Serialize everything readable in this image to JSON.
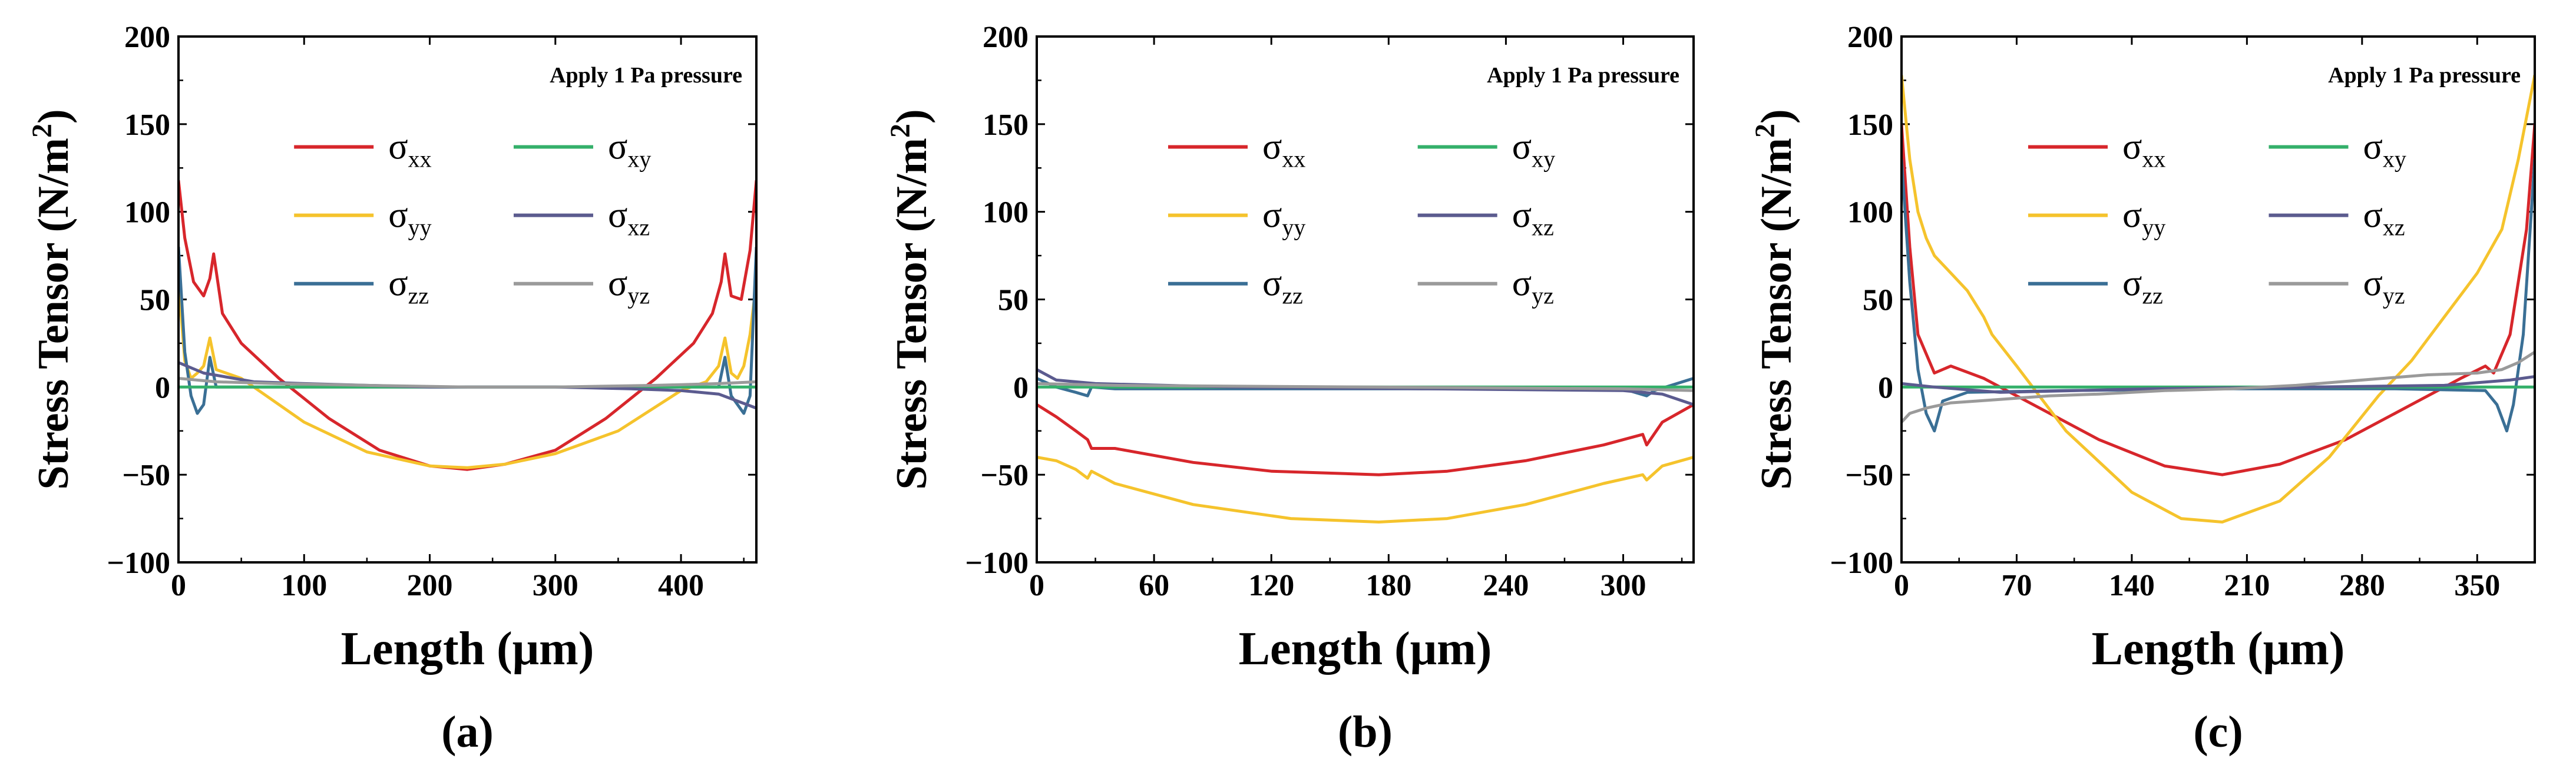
{
  "colors": {
    "sxx": "#d7262b",
    "syy": "#f5c32c",
    "szz": "#3a6f95",
    "sxy": "#34b06a",
    "sxz": "#5b5b8f",
    "syz": "#9a9a9a",
    "axis": "#000000"
  },
  "chart_data": [
    {
      "type": "line",
      "panel_label": "(a)",
      "annotation": "Apply 1 Pa pressure",
      "xlabel": "Length (μm)",
      "ylabel": {
        "main": "Stress Tensor (N/m",
        "sup": "2",
        "close": ")"
      },
      "xlim": [
        0,
        460
      ],
      "ylim": [
        -100,
        200
      ],
      "xticks": [
        0,
        100,
        200,
        300,
        400
      ],
      "xtick_labels": [
        "0",
        "100",
        "200",
        "300",
        "400"
      ],
      "yticks": [
        -100,
        -50,
        0,
        50,
        100,
        150,
        200
      ],
      "ytick_labels": [
        "−100",
        "−50",
        "0",
        "50",
        "100",
        "150",
        "200"
      ],
      "legend": [
        {
          "key": "sxx",
          "base": "σ",
          "sub": "xx"
        },
        {
          "key": "sxy",
          "base": "σ",
          "sub": "xy"
        },
        {
          "key": "syy",
          "base": "σ",
          "sub": "yy"
        },
        {
          "key": "sxz",
          "base": "σ",
          "sub": "xz"
        },
        {
          "key": "szz",
          "base": "σ",
          "sub": "zz"
        },
        {
          "key": "syz",
          "base": "σ",
          "sub": "yz"
        }
      ],
      "series": [
        {
          "key": "sxx",
          "x": [
            0,
            5,
            12,
            20,
            25,
            28,
            35,
            50,
            80,
            120,
            160,
            200,
            230,
            260,
            300,
            340,
            380,
            410,
            425,
            432,
            435,
            440,
            448,
            455,
            460
          ],
          "y": [
            118,
            85,
            60,
            52,
            62,
            76,
            42,
            25,
            5,
            -18,
            -36,
            -45,
            -47,
            -44,
            -36,
            -18,
            5,
            25,
            42,
            60,
            76,
            52,
            50,
            78,
            118
          ]
        },
        {
          "key": "syy",
          "x": [
            0,
            5,
            10,
            15,
            20,
            25,
            30,
            50,
            100,
            150,
            200,
            230,
            260,
            300,
            350,
            400,
            420,
            430,
            435,
            440,
            445,
            450,
            455,
            460
          ],
          "y": [
            60,
            15,
            5,
            8,
            12,
            28,
            10,
            5,
            -20,
            -37,
            -45,
            -46,
            -44,
            -38,
            -25,
            -2,
            3,
            12,
            28,
            8,
            5,
            12,
            30,
            60
          ]
        },
        {
          "key": "szz",
          "x": [
            0,
            5,
            10,
            15,
            20,
            25,
            30,
            60,
            200,
            400,
            430,
            435,
            440,
            445,
            450,
            455,
            460
          ],
          "y": [
            80,
            20,
            -5,
            -15,
            -10,
            17,
            0,
            0,
            0,
            0,
            0,
            17,
            -5,
            -10,
            -15,
            -5,
            80
          ]
        },
        {
          "key": "sxy",
          "x": [
            0,
            460
          ],
          "y": [
            0,
            0
          ]
        },
        {
          "key": "sxz",
          "x": [
            0,
            20,
            60,
            100,
            200,
            300,
            360,
            400,
            430,
            445,
            460
          ],
          "y": [
            14,
            8,
            3,
            2,
            0,
            0,
            -1,
            -2,
            -4,
            -8,
            -12
          ]
        },
        {
          "key": "syz",
          "x": [
            0,
            30,
            80,
            150,
            230,
            300,
            380,
            430,
            460
          ],
          "y": [
            5,
            3,
            2,
            1,
            0,
            0,
            1,
            2,
            3
          ]
        }
      ]
    },
    {
      "type": "line",
      "panel_label": "(b)",
      "annotation": "Apply 1 Pa pressure",
      "xlabel": "Length (μm)",
      "ylabel": {
        "main": "Stress Tensor (N/m",
        "sup": "2",
        "close": ")"
      },
      "xlim": [
        0,
        336
      ],
      "ylim": [
        -100,
        200
      ],
      "xticks": [
        0,
        60,
        120,
        180,
        240,
        300
      ],
      "xtick_labels": [
        "0",
        "60",
        "120",
        "180",
        "240",
        "300"
      ],
      "yticks": [
        -100,
        -50,
        0,
        50,
        100,
        150,
        200
      ],
      "ytick_labels": [
        "−100",
        "−50",
        "0",
        "50",
        "100",
        "150",
        "200"
      ],
      "legend": [
        {
          "key": "sxx",
          "base": "σ",
          "sub": "xx"
        },
        {
          "key": "sxy",
          "base": "σ",
          "sub": "xy"
        },
        {
          "key": "syy",
          "base": "σ",
          "sub": "yy"
        },
        {
          "key": "sxz",
          "base": "σ",
          "sub": "xz"
        },
        {
          "key": "szz",
          "base": "σ",
          "sub": "zz"
        },
        {
          "key": "syz",
          "base": "σ",
          "sub": "yz"
        }
      ],
      "series": [
        {
          "key": "sxx",
          "x": [
            0,
            10,
            20,
            26,
            28,
            40,
            80,
            120,
            175,
            210,
            250,
            290,
            310,
            312,
            320,
            336
          ],
          "y": [
            -10,
            -17,
            -25,
            -30,
            -35,
            -35,
            -43,
            -48,
            -50,
            -48,
            -42,
            -33,
            -27,
            -33,
            -20,
            -10
          ]
        },
        {
          "key": "syy",
          "x": [
            0,
            10,
            20,
            26,
            28,
            40,
            80,
            130,
            175,
            210,
            250,
            290,
            310,
            312,
            320,
            336
          ],
          "y": [
            -40,
            -42,
            -47,
            -52,
            -48,
            -55,
            -67,
            -75,
            -77,
            -75,
            -67,
            -55,
            -50,
            -53,
            -45,
            -40
          ]
        },
        {
          "key": "szz",
          "x": [
            0,
            10,
            20,
            26,
            28,
            40,
            160,
            300,
            312,
            316,
            336
          ],
          "y": [
            5,
            0,
            -3,
            -5,
            0,
            -1,
            -1,
            -1,
            -5,
            -2,
            5
          ]
        },
        {
          "key": "sxy",
          "x": [
            0,
            336
          ],
          "y": [
            0,
            0
          ]
        },
        {
          "key": "sxz",
          "x": [
            0,
            10,
            30,
            100,
            200,
            300,
            320,
            336
          ],
          "y": [
            10,
            4,
            2,
            0,
            -1,
            -2,
            -4,
            -10
          ]
        },
        {
          "key": "syz",
          "x": [
            0,
            40,
            170,
            300,
            336
          ],
          "y": [
            2,
            1,
            0,
            -1,
            -2
          ]
        }
      ]
    },
    {
      "type": "line",
      "panel_label": "(c)",
      "annotation": "Apply 1 Pa pressure",
      "xlabel": "Length (μm)",
      "ylabel": {
        "main": "Stress Tensor (N/m",
        "sup": "2",
        "close": ")"
      },
      "xlim": [
        0,
        385
      ],
      "ylim": [
        -100,
        200
      ],
      "xticks": [
        0,
        70,
        140,
        210,
        280,
        350
      ],
      "xtick_labels": [
        "0",
        "70",
        "140",
        "210",
        "280",
        "350"
      ],
      "yticks": [
        -100,
        -50,
        0,
        50,
        100,
        150,
        200
      ],
      "ytick_labels": [
        "−100",
        "−50",
        "0",
        "50",
        "100",
        "150",
        "200"
      ],
      "legend": [
        {
          "key": "sxx",
          "base": "σ",
          "sub": "xx"
        },
        {
          "key": "sxy",
          "base": "σ",
          "sub": "xy"
        },
        {
          "key": "syy",
          "base": "σ",
          "sub": "yy"
        },
        {
          "key": "sxz",
          "base": "σ",
          "sub": "xz"
        },
        {
          "key": "szz",
          "base": "σ",
          "sub": "zz"
        },
        {
          "key": "syz",
          "base": "σ",
          "sub": "yz"
        }
      ],
      "series": [
        {
          "key": "sxx",
          "x": [
            0,
            5,
            10,
            20,
            30,
            50,
            80,
            120,
            160,
            195,
            230,
            270,
            310,
            340,
            355,
            360,
            370,
            380,
            385
          ],
          "y": [
            150,
            80,
            30,
            8,
            12,
            5,
            -10,
            -30,
            -45,
            -50,
            -44,
            -30,
            -10,
            5,
            12,
            8,
            30,
            90,
            150
          ]
        },
        {
          "key": "syy",
          "x": [
            0,
            5,
            10,
            15,
            20,
            30,
            40,
            50,
            55,
            70,
            100,
            140,
            170,
            195,
            230,
            260,
            290,
            310,
            330,
            350,
            365,
            375,
            385
          ],
          "y": [
            178,
            130,
            100,
            85,
            75,
            65,
            55,
            40,
            30,
            12,
            -25,
            -60,
            -75,
            -77,
            -65,
            -40,
            -5,
            15,
            40,
            65,
            90,
            130,
            178
          ]
        },
        {
          "key": "szz",
          "x": [
            0,
            5,
            10,
            15,
            20,
            25,
            40,
            100,
            200,
            300,
            355,
            362,
            368,
            372,
            378,
            385
          ],
          "y": [
            130,
            60,
            10,
            -15,
            -25,
            -8,
            -3,
            -2,
            -1,
            -1,
            -2,
            -10,
            -25,
            -10,
            30,
            130
          ]
        },
        {
          "key": "sxy",
          "x": [
            0,
            385
          ],
          "y": [
            0,
            0
          ]
        },
        {
          "key": "sxz",
          "x": [
            0,
            20,
            60,
            150,
            250,
            330,
            370,
            385
          ],
          "y": [
            2,
            0,
            -3,
            -1,
            0,
            1,
            4,
            6
          ]
        },
        {
          "key": "syz",
          "x": [
            0,
            5,
            15,
            30,
            60,
            90,
            120,
            160,
            200,
            240,
            280,
            320,
            350,
            365,
            375,
            385
          ],
          "y": [
            -20,
            -15,
            -12,
            -9,
            -7,
            -5,
            -4,
            -2,
            -1,
            1,
            4,
            7,
            8,
            10,
            14,
            20
          ]
        }
      ]
    }
  ]
}
